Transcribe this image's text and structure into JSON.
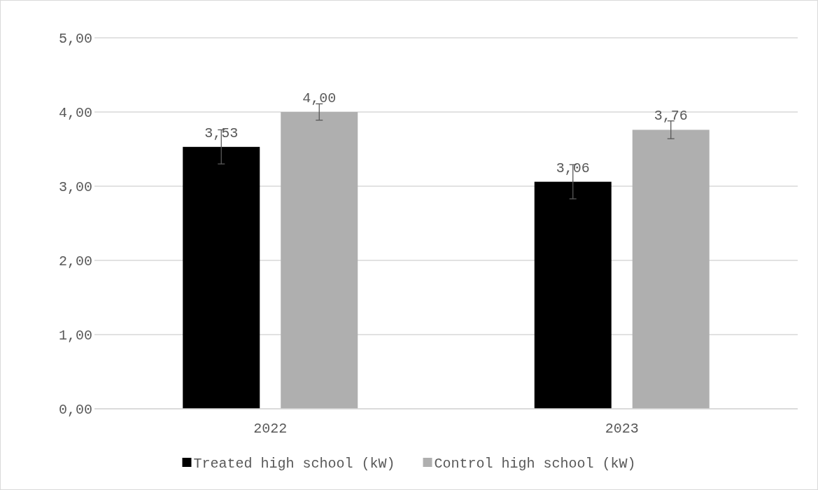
{
  "chart_data": {
    "type": "bar",
    "categories": [
      "2022",
      "2023"
    ],
    "series": [
      {
        "name": "Treated high school (kW)",
        "color": "#000000",
        "values": [
          3.53,
          3.06
        ],
        "errors": [
          0.23,
          0.23
        ],
        "value_labels": [
          "3,53",
          "3,06"
        ]
      },
      {
        "name": "Control high school (kW)",
        "color": "#afafaf",
        "values": [
          4.0,
          3.76
        ],
        "errors": [
          0.11,
          0.12
        ],
        "value_labels": [
          "4,00",
          "3,76"
        ]
      }
    ],
    "ylim": [
      0,
      5
    ],
    "yticks": [
      {
        "value": 0,
        "label": "0,00"
      },
      {
        "value": 1,
        "label": "1,00"
      },
      {
        "value": 2,
        "label": "2,00"
      },
      {
        "value": 3,
        "label": "3,00"
      },
      {
        "value": 4,
        "label": "4,00"
      },
      {
        "value": 5,
        "label": "5,00"
      }
    ],
    "grid": "y",
    "legend": "bottom"
  }
}
